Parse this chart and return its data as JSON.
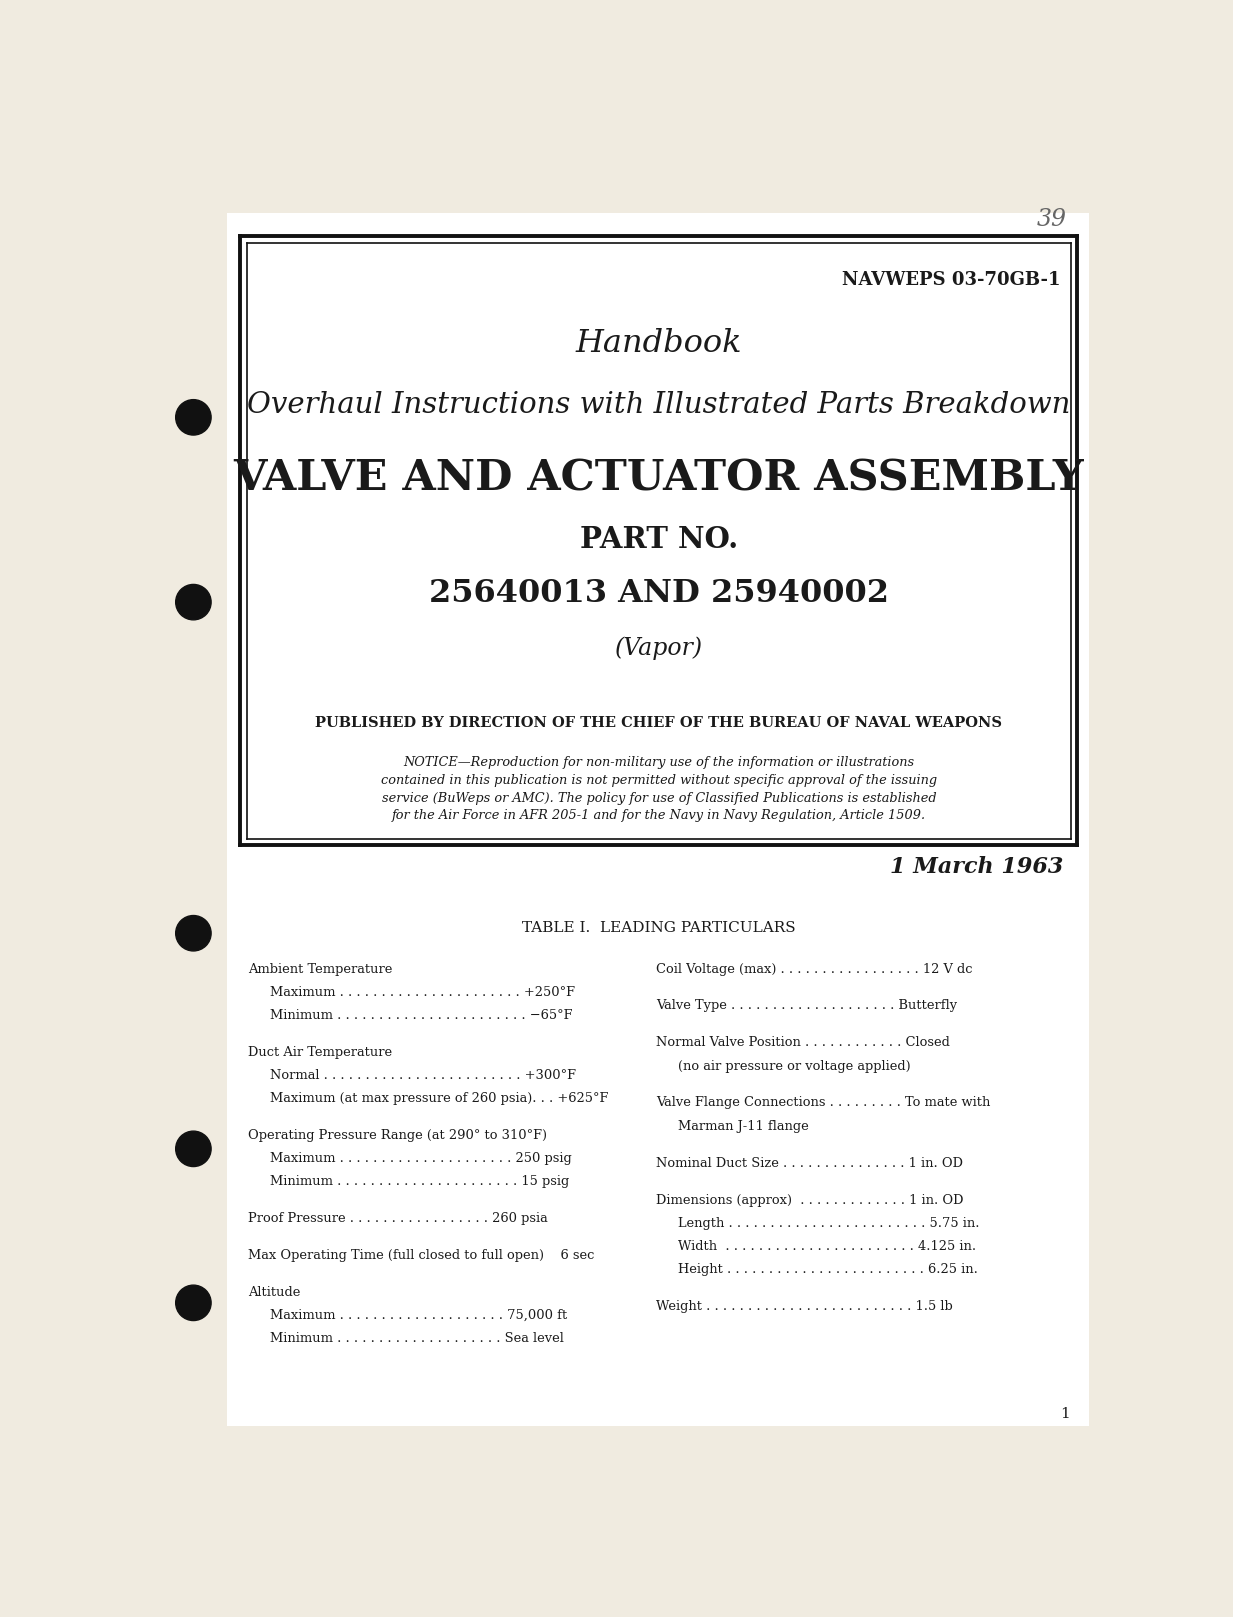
{
  "bg_color": "#f0ebe0",
  "page_bg": "#ffffff",
  "text_color": "#1a1a1a",
  "doc_number": "NAVWEPS 03-70GB-1",
  "handbook_label": "Handbook",
  "subtitle": "Overhaul Instructions with Illustrated Parts Breakdown",
  "main_title": "VALVE AND ACTUATOR ASSEMBLY",
  "part_no_label": "PART NO.",
  "part_numbers": "25640013 AND 25940002",
  "vapor": "(Vapor)",
  "published_by": "PUBLISHED BY DIRECTION OF THE CHIEF OF THE BUREAU OF NAVAL WEAPONS",
  "notice_lines": [
    "NOTICE—Reproduction for non-military use of the information or illustrations",
    "contained in this publication is not permitted without specific approval of the issuing",
    "service (BuWeps or AMC). The policy for use of Classified Publications is established",
    "for the Air Force in AFR 205-1 and for the Navy in Navy Regulation, Article 1509."
  ],
  "date": "1 March 1963",
  "stamp": "39",
  "table_title": "TABLE I.  LEADING PARTICULARS",
  "left_col": [
    {
      "label": "Ambient Temperature",
      "indent": false
    },
    {
      "label": "Maximum . . . . . . . . . . . . . . . . . . . . . . +250°F",
      "indent": true
    },
    {
      "label": "Minimum . . . . . . . . . . . . . . . . . . . . . . . −65°F",
      "indent": true
    },
    {
      "label": "",
      "indent": false
    },
    {
      "label": "Duct Air Temperature",
      "indent": false
    },
    {
      "label": "Normal . . . . . . . . . . . . . . . . . . . . . . . . +300°F",
      "indent": true
    },
    {
      "label": "Maximum (at max pressure of 260 psia). . . +625°F",
      "indent": true
    },
    {
      "label": "",
      "indent": false
    },
    {
      "label": "Operating Pressure Range (at 290° to 310°F)",
      "indent": false
    },
    {
      "label": "Maximum . . . . . . . . . . . . . . . . . . . . . 250 psig",
      "indent": true
    },
    {
      "label": "Minimum . . . . . . . . . . . . . . . . . . . . . . 15 psig",
      "indent": true
    },
    {
      "label": "",
      "indent": false
    },
    {
      "label": "Proof Pressure . . . . . . . . . . . . . . . . . 260 psia",
      "indent": false
    },
    {
      "label": "",
      "indent": false
    },
    {
      "label": "Max Operating Time (full closed to full open)    6 sec",
      "indent": false
    },
    {
      "label": "",
      "indent": false
    },
    {
      "label": "Altitude",
      "indent": false
    },
    {
      "label": "Maximum . . . . . . . . . . . . . . . . . . . . 75,000 ft",
      "indent": true
    },
    {
      "label": "Minimum . . . . . . . . . . . . . . . . . . . . Sea level",
      "indent": true
    }
  ],
  "right_col": [
    {
      "label": "Coil Voltage (max) . . . . . . . . . . . . . . . . . 12 V dc",
      "sub": false
    },
    {
      "label": "",
      "sub": false
    },
    {
      "label": "Valve Type . . . . . . . . . . . . . . . . . . . . Butterfly",
      "sub": false
    },
    {
      "label": "",
      "sub": false
    },
    {
      "label": "Normal Valve Position . . . . . . . . . . . . Closed",
      "sub": false
    },
    {
      "label": "(no air pressure or voltage applied)",
      "sub": true
    },
    {
      "label": "",
      "sub": false
    },
    {
      "label": "Valve Flange Connections . . . . . . . . . To mate with",
      "sub": false
    },
    {
      "label": "Marman J-11 flange",
      "sub": true
    },
    {
      "label": "",
      "sub": false
    },
    {
      "label": "Nominal Duct Size . . . . . . . . . . . . . . . 1 in. OD",
      "sub": false
    },
    {
      "label": "",
      "sub": false
    },
    {
      "label": "Dimensions (approx)  . . . . . . . . . . . . . 1 in. OD",
      "sub": false
    },
    {
      "label": "Length . . . . . . . . . . . . . . . . . . . . . . . . 5.75 in.",
      "sub": true
    },
    {
      "label": "Width  . . . . . . . . . . . . . . . . . . . . . . . 4.125 in.",
      "sub": true
    },
    {
      "label": "Height . . . . . . . . . . . . . . . . . . . . . . . . 6.25 in.",
      "sub": true
    },
    {
      "label": "",
      "sub": false
    },
    {
      "label": "Weight . . . . . . . . . . . . . . . . . . . . . . . . . 1.5 lb",
      "sub": false
    }
  ],
  "page_number": "1",
  "hole_color": "#111111"
}
